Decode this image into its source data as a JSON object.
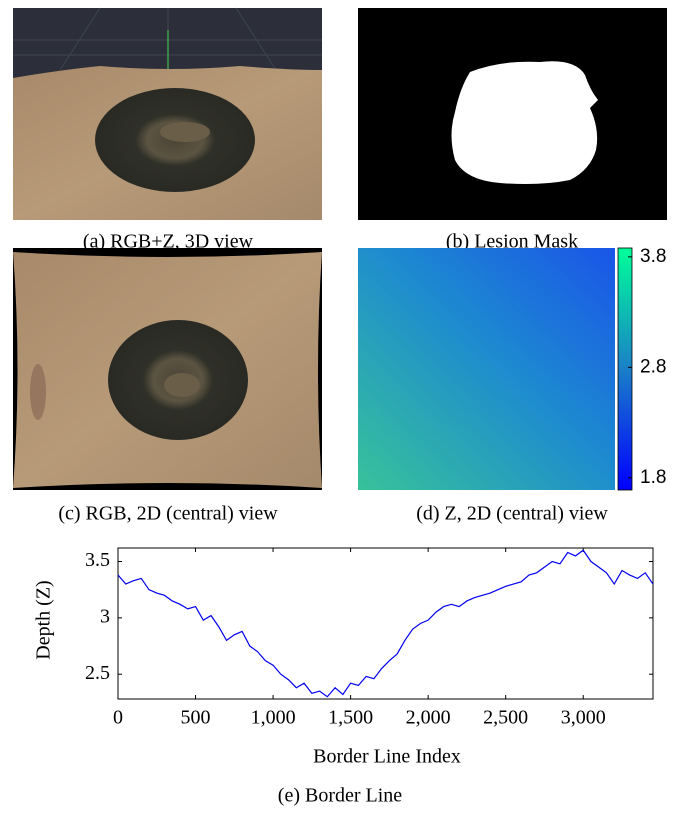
{
  "panels": [
    {
      "caption": "(a) RGB+Z, 3D view"
    },
    {
      "caption": "(b) Lesion Mask"
    },
    {
      "caption": "(c) RGB, 2D (central) view"
    },
    {
      "caption": "(d) Z, 2D (central) view"
    }
  ],
  "colorbar": {
    "lim": [
      1.69,
      3.88
    ],
    "ticks": [
      1.8,
      2.8,
      3.8
    ]
  },
  "chart_data": {
    "type": "line",
    "caption": "(e) Border Line",
    "x_label": "Border Line Index",
    "y_label": "Depth (Z)",
    "color": "#0000ee",
    "x": [
      0,
      50,
      100,
      150,
      200,
      250,
      300,
      350,
      400,
      450,
      500,
      550,
      600,
      650,
      700,
      750,
      800,
      850,
      900,
      950,
      1000,
      1050,
      1100,
      1150,
      1200,
      1250,
      1300,
      1350,
      1400,
      1450,
      1500,
      1550,
      1600,
      1650,
      1700,
      1750,
      1800,
      1850,
      1900,
      1950,
      2000,
      2050,
      2100,
      2150,
      2200,
      2250,
      2300,
      2350,
      2400,
      2450,
      2500,
      2550,
      2600,
      2650,
      2700,
      2750,
      2800,
      2850,
      2900,
      2950,
      3000,
      3050,
      3100,
      3150,
      3200,
      3250,
      3300,
      3350,
      3400,
      3450
    ],
    "values": [
      3.38,
      3.3,
      3.33,
      3.35,
      3.25,
      3.22,
      3.2,
      3.15,
      3.12,
      3.08,
      3.1,
      2.98,
      3.02,
      2.92,
      2.8,
      2.85,
      2.88,
      2.75,
      2.7,
      2.62,
      2.58,
      2.5,
      2.45,
      2.38,
      2.42,
      2.33,
      2.35,
      2.3,
      2.38,
      2.32,
      2.42,
      2.4,
      2.48,
      2.46,
      2.55,
      2.62,
      2.68,
      2.8,
      2.9,
      2.95,
      2.98,
      3.05,
      3.1,
      3.12,
      3.1,
      3.15,
      3.18,
      3.2,
      3.22,
      3.25,
      3.28,
      3.3,
      3.32,
      3.38,
      3.4,
      3.45,
      3.5,
      3.48,
      3.58,
      3.55,
      3.6,
      3.5,
      3.45,
      3.4,
      3.3,
      3.42,
      3.38,
      3.35,
      3.4,
      3.3
    ],
    "xlim": [
      0,
      3450
    ],
    "ylim": [
      2.28,
      3.62
    ],
    "xticks": [
      0,
      500,
      {
        "value": 1000,
        "label": "1,000"
      },
      {
        "value": 1500,
        "label": "1,500"
      },
      {
        "value": 2000,
        "label": "2,000"
      },
      {
        "value": 2500,
        "label": "2,500"
      },
      {
        "value": 3000,
        "label": "3,000"
      }
    ],
    "yticks": [
      2.5,
      3,
      3.5
    ]
  }
}
